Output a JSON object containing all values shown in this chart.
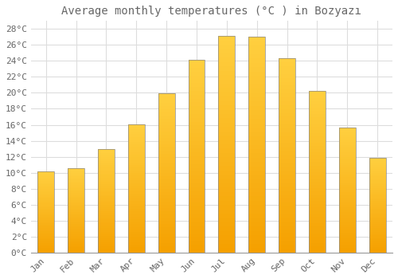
{
  "title": "Average monthly temperatures (°C ) in Bozyazı",
  "months": [
    "Jan",
    "Feb",
    "Mar",
    "Apr",
    "May",
    "Jun",
    "Jul",
    "Aug",
    "Sep",
    "Oct",
    "Nov",
    "Dec"
  ],
  "values": [
    10.2,
    10.6,
    13.0,
    16.1,
    19.9,
    24.1,
    27.1,
    27.0,
    24.3,
    20.2,
    15.7,
    11.9
  ],
  "bar_color_top": "#FFD040",
  "bar_color_bottom": "#F5A000",
  "bar_edge_color": "#888888",
  "ylim": [
    0,
    29
  ],
  "yticks": [
    0,
    2,
    4,
    6,
    8,
    10,
    12,
    14,
    16,
    18,
    20,
    22,
    24,
    26,
    28
  ],
  "ytick_labels": [
    "0°C",
    "2°C",
    "4°C",
    "6°C",
    "8°C",
    "10°C",
    "12°C",
    "14°C",
    "16°C",
    "18°C",
    "20°C",
    "22°C",
    "24°C",
    "26°C",
    "28°C"
  ],
  "background_color": "#FFFFFF",
  "grid_color": "#DDDDDD",
  "title_fontsize": 10,
  "tick_fontsize": 8,
  "font_color": "#666666"
}
